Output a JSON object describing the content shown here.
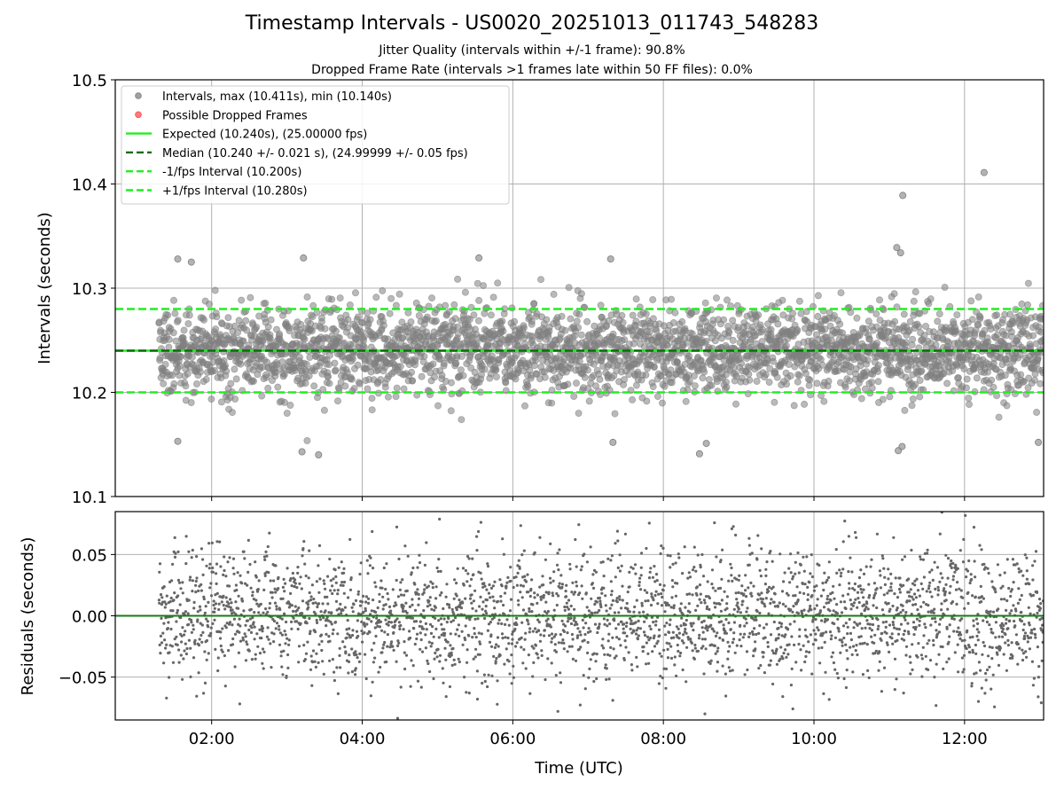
{
  "chart_data": [
    {
      "type": "scatter",
      "title": "Timestamp Intervals - US0020_20251013_011743_548283",
      "subtitle_lines": [
        "Jitter Quality (intervals within +/-1 frame): 90.8%",
        "Dropped Frame Rate (intervals >1 frames late within 50 FF files): 0.0%"
      ],
      "xlabel": "",
      "ylabel": "Intervals (seconds)",
      "xlim_hours": [
        0.72,
        13.05
      ],
      "ylim": [
        10.1,
        10.5
      ],
      "yticks": [
        10.1,
        10.2,
        10.3,
        10.4,
        10.5
      ],
      "ytick_labels": [
        "10.1",
        "10.2",
        "10.3",
        "10.4",
        "10.5"
      ],
      "grid": true,
      "legend_position": "top-left",
      "legend": [
        {
          "label": "Intervals, max (10.411s), min (10.140s)",
          "marker": "circle",
          "color": "#808080"
        },
        {
          "label": "Possible Dropped Frames",
          "marker": "circle",
          "color": "#ff4d4d"
        },
        {
          "label": "Expected (10.240s), (25.00000 fps)",
          "line": "solid",
          "color": "#22ee22"
        },
        {
          "label": "Median (10.240 +/- 0.021 s), (24.99999 +/- 0.05 fps)",
          "line": "dashed",
          "color": "#0a6e0a"
        },
        {
          "label": "-1/fps Interval (10.200s)",
          "line": "dashed",
          "color": "#22ee22"
        },
        {
          "label": "+1/fps Interval (10.280s)",
          "line": "dashed",
          "color": "#22ee22"
        }
      ],
      "reference_lines": [
        {
          "name": "expected",
          "value": 10.24,
          "style": "solid",
          "color": "#22ee22"
        },
        {
          "name": "median",
          "value": 10.24,
          "style": "dashed",
          "color": "#0a6e0a"
        },
        {
          "name": "minus-one-fps",
          "value": 10.2,
          "style": "dashed",
          "color": "#22ee22"
        },
        {
          "name": "plus-one-fps",
          "value": 10.28,
          "style": "dashed",
          "color": "#22ee22"
        }
      ],
      "series": [
        {
          "name": "Intervals",
          "color": "#808080",
          "count": 2975,
          "x_range_hours": [
            1.3,
            13.05
          ],
          "median": 10.24,
          "stdev": 0.021,
          "max": 10.411,
          "min": 10.14,
          "outliers": [
            {
              "x_hours": 12.26,
              "y": 10.411
            },
            {
              "x_hours": 11.18,
              "y": 10.389
            },
            {
              "x_hours": 11.1,
              "y": 10.339
            },
            {
              "x_hours": 11.15,
              "y": 10.334
            },
            {
              "x_hours": 3.22,
              "y": 10.329
            },
            {
              "x_hours": 5.55,
              "y": 10.329
            },
            {
              "x_hours": 7.3,
              "y": 10.328
            },
            {
              "x_hours": 1.55,
              "y": 10.328
            },
            {
              "x_hours": 1.73,
              "y": 10.325
            },
            {
              "x_hours": 3.42,
              "y": 10.14
            },
            {
              "x_hours": 8.48,
              "y": 10.141
            },
            {
              "x_hours": 3.2,
              "y": 10.143
            },
            {
              "x_hours": 11.12,
              "y": 10.144
            },
            {
              "x_hours": 11.17,
              "y": 10.148
            },
            {
              "x_hours": 8.57,
              "y": 10.151
            },
            {
              "x_hours": 7.33,
              "y": 10.152
            },
            {
              "x_hours": 12.98,
              "y": 10.152
            },
            {
              "x_hours": 1.55,
              "y": 10.153
            }
          ]
        }
      ]
    },
    {
      "type": "scatter",
      "title": "",
      "xlabel": "Time (UTC)",
      "ylabel": "Residuals (seconds)",
      "xlim_hours": [
        0.72,
        13.05
      ],
      "ylim": [
        -0.085,
        0.085
      ],
      "yticks": [
        -0.05,
        0.0,
        0.05
      ],
      "ytick_labels": [
        "−0.05",
        "0.00",
        "0.05"
      ],
      "xticks_hours": [
        2,
        4,
        6,
        8,
        10,
        12
      ],
      "xtick_labels": [
        "02:00",
        "04:00",
        "06:00",
        "08:00",
        "10:00",
        "12:00"
      ],
      "grid": true,
      "reference_lines": [
        {
          "name": "zero",
          "value": 0.0,
          "style": "solid",
          "color": "#1a7a1a"
        }
      ],
      "series": [
        {
          "name": "Residuals",
          "color": "#666666",
          "count": 2975,
          "x_range_hours": [
            1.3,
            13.05
          ],
          "mean": 0.0,
          "stdev": 0.027
        }
      ]
    }
  ]
}
